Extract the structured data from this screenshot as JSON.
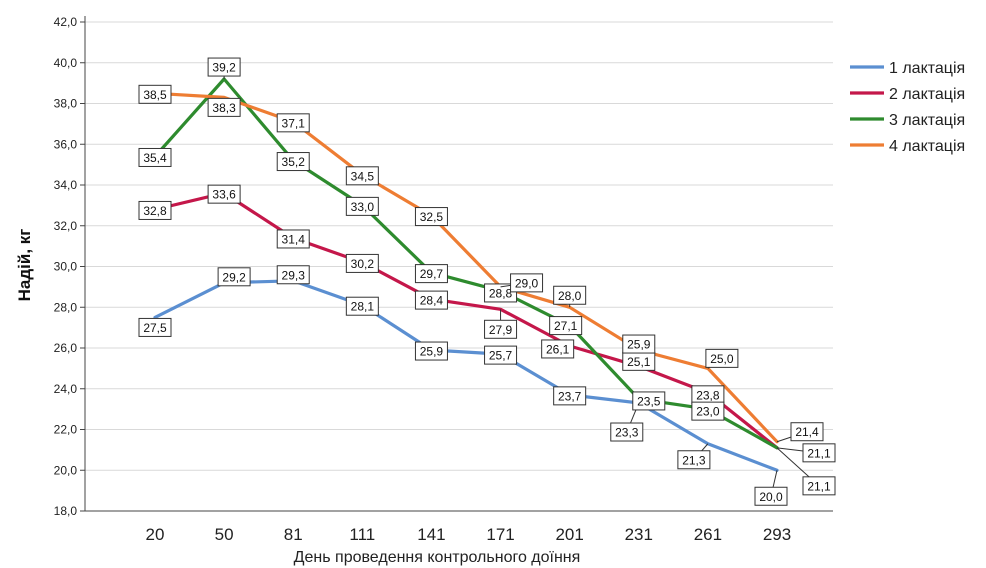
{
  "chart_data": {
    "type": "line",
    "title": "",
    "xlabel": "День проведення контрольного доїння",
    "ylabel": "Надій, кг",
    "categories": [
      "20",
      "50",
      "81",
      "111",
      "141",
      "171",
      "201",
      "231",
      "261",
      "293"
    ],
    "ylim": [
      18.0,
      42.0
    ],
    "yticks": [
      "18,0",
      "20,0",
      "22,0",
      "24,0",
      "26,0",
      "28,0",
      "30,0",
      "32,0",
      "34,0",
      "36,0",
      "38,0",
      "40,0",
      "42,0"
    ],
    "grid": true,
    "legend_position": "right",
    "series": [
      {
        "name": "1 лактація",
        "color": "#5b8fd1",
        "values": [
          27.5,
          29.2,
          29.3,
          28.1,
          25.9,
          25.7,
          23.7,
          23.3,
          21.3,
          20.0
        ],
        "labels": [
          "27,5",
          "29,2",
          "29,3",
          "28,1",
          "25,9",
          "25,7",
          "23,7",
          "23,3",
          "21,3",
          "20,0"
        ]
      },
      {
        "name": "2 лактація",
        "color": "#c4174a",
        "values": [
          32.8,
          33.6,
          31.4,
          30.2,
          28.4,
          27.9,
          26.1,
          25.1,
          23.8,
          21.1
        ],
        "labels": [
          "32,8",
          "33,6",
          "31,4",
          "30,2",
          "28,4",
          "27,9",
          "26,1",
          "25,1",
          "23,8",
          "21,1"
        ]
      },
      {
        "name": "3 лактація",
        "color": "#2e8b2e",
        "values": [
          35.4,
          39.2,
          35.2,
          33.0,
          29.7,
          28.8,
          27.1,
          23.5,
          23.0,
          21.1
        ],
        "labels": [
          "35,4",
          "39,2",
          "35,2",
          "33,0",
          "29,7",
          "28,8",
          "27,1",
          "23,5",
          "23,0",
          "21,1"
        ]
      },
      {
        "name": "4 лактація",
        "color": "#ee7d33",
        "values": [
          38.5,
          38.3,
          37.1,
          34.5,
          32.5,
          29.0,
          28.0,
          25.9,
          25.0,
          21.4
        ],
        "labels": [
          "38,5",
          "38,3",
          "37,1",
          "34,5",
          "32,5",
          "29,0",
          "28,0",
          "25,9",
          "25,0",
          "21,4"
        ]
      }
    ]
  }
}
